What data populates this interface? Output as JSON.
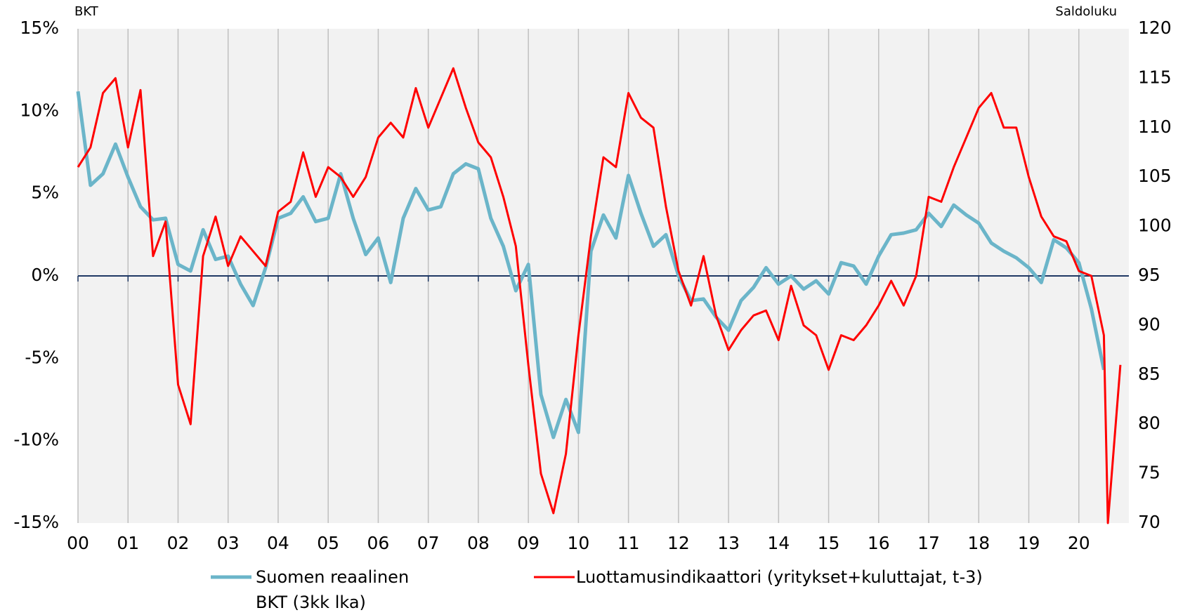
{
  "chart_data": {
    "type": "line",
    "ylabel": "BKT",
    "y2label": "Saldoluku",
    "x": [
      0,
      0.25,
      0.5,
      0.75,
      1,
      1.25,
      1.5,
      1.75,
      2,
      2.25,
      2.5,
      2.75,
      3,
      3.25,
      3.5,
      3.75,
      4,
      4.25,
      4.5,
      4.75,
      5,
      5.25,
      5.5,
      5.75,
      6,
      6.25,
      6.5,
      6.75,
      7,
      7.25,
      7.5,
      7.75,
      8,
      8.25,
      8.5,
      8.75,
      9,
      9.25,
      9.5,
      9.75,
      10,
      10.25,
      10.5,
      10.75,
      11,
      11.25,
      11.5,
      11.75,
      12,
      12.25,
      12.5,
      12.75,
      13,
      13.25,
      13.5,
      13.75,
      14,
      14.25,
      14.5,
      14.75,
      15,
      15.25,
      15.5,
      15.75,
      16,
      16.25,
      16.5,
      16.75,
      17,
      17.25,
      17.5,
      17.75,
      18,
      18.25,
      18.5,
      18.75,
      19,
      19.25,
      19.5,
      19.75,
      20,
      20.25,
      20.5,
      20.58,
      20.83
    ],
    "series": [
      {
        "name": "Suomen reaalinen BKT (3kk lka)",
        "color": "#6bb5c9",
        "axis": "y",
        "values": [
          11.2,
          5.5,
          6.2,
          8.0,
          6.0,
          4.2,
          3.4,
          3.5,
          0.7,
          0.3,
          2.8,
          1.0,
          1.2,
          -0.5,
          -1.8,
          0.5,
          3.5,
          3.8,
          4.8,
          3.3,
          3.5,
          6.2,
          3.5,
          1.3,
          2.3,
          -0.4,
          3.5,
          5.3,
          4.0,
          4.2,
          6.2,
          6.8,
          6.5,
          3.5,
          1.8,
          -0.9,
          0.7,
          -7.2,
          -9.8,
          -7.5,
          -9.5,
          1.5,
          3.7,
          2.3,
          6.1,
          3.8,
          1.8,
          2.5,
          0.0,
          -1.5,
          -1.4,
          -2.5,
          -3.3,
          -1.5,
          -0.7,
          0.5,
          -0.5,
          0.0,
          -0.8,
          -0.3,
          -1.1,
          0.8,
          0.6,
          -0.5,
          1.2,
          2.5,
          2.6,
          2.8,
          3.8,
          3.0,
          4.3,
          3.7,
          3.2,
          2.0,
          1.5,
          1.1,
          0.5,
          -0.4,
          2.2,
          1.7,
          0.8,
          -2.0,
          -5.7,
          null,
          null
        ]
      },
      {
        "name": "Luottamusindikaattori (yritykset+kuluttajat, t-3)",
        "color": "#ff0000",
        "axis": "y2",
        "values": [
          106,
          108,
          113.5,
          115,
          108,
          113.8,
          97,
          100.5,
          84,
          80,
          97,
          101,
          96,
          99,
          97.5,
          96,
          101.5,
          102.5,
          107.5,
          103,
          106,
          105,
          103,
          105,
          109,
          110.5,
          109,
          114,
          110,
          113,
          116,
          112,
          108.5,
          107,
          103,
          98,
          86,
          75,
          71,
          77,
          89,
          99,
          107,
          106,
          113.5,
          111,
          110,
          102,
          95.5,
          92,
          97,
          91,
          87.5,
          89.5,
          91,
          91.5,
          88.5,
          94,
          90,
          89,
          85.5,
          89,
          88.5,
          90,
          92,
          94.5,
          92,
          95,
          103,
          102.5,
          106,
          109,
          112,
          113.5,
          110,
          110,
          105,
          101,
          99,
          98.5,
          95.5,
          95,
          89,
          70,
          86
        ]
      }
    ],
    "xlim": [
      0,
      21
    ],
    "xticks": [
      {
        "value": 0,
        "label": "00"
      },
      {
        "value": 1,
        "label": "01"
      },
      {
        "value": 2,
        "label": "02"
      },
      {
        "value": 3,
        "label": "03"
      },
      {
        "value": 4,
        "label": "04"
      },
      {
        "value": 5,
        "label": "05"
      },
      {
        "value": 6,
        "label": "06"
      },
      {
        "value": 7,
        "label": "07"
      },
      {
        "value": 8,
        "label": "08"
      },
      {
        "value": 9,
        "label": "09"
      },
      {
        "value": 10,
        "label": "10"
      },
      {
        "value": 11,
        "label": "11"
      },
      {
        "value": 12,
        "label": "12"
      },
      {
        "value": 13,
        "label": "13"
      },
      {
        "value": 14,
        "label": "14"
      },
      {
        "value": 15,
        "label": "15"
      },
      {
        "value": 16,
        "label": "16"
      },
      {
        "value": 17,
        "label": "17"
      },
      {
        "value": 18,
        "label": "18"
      },
      {
        "value": 19,
        "label": "19"
      },
      {
        "value": 20,
        "label": "20"
      }
    ],
    "ylim": [
      -15,
      15
    ],
    "yticks": [
      {
        "value": -15,
        "label": "-15%"
      },
      {
        "value": -10,
        "label": "-10%"
      },
      {
        "value": -5,
        "label": "-5%"
      },
      {
        "value": 0,
        "label": "0%"
      },
      {
        "value": 5,
        "label": "5%"
      },
      {
        "value": 10,
        "label": "10%"
      },
      {
        "value": 15,
        "label": "15%"
      }
    ],
    "y2lim": [
      70,
      120
    ],
    "y2ticks": [
      70,
      75,
      80,
      85,
      90,
      95,
      100,
      105,
      110,
      115,
      120
    ],
    "xgrid": true,
    "zero_line_color": "#1f3864"
  }
}
